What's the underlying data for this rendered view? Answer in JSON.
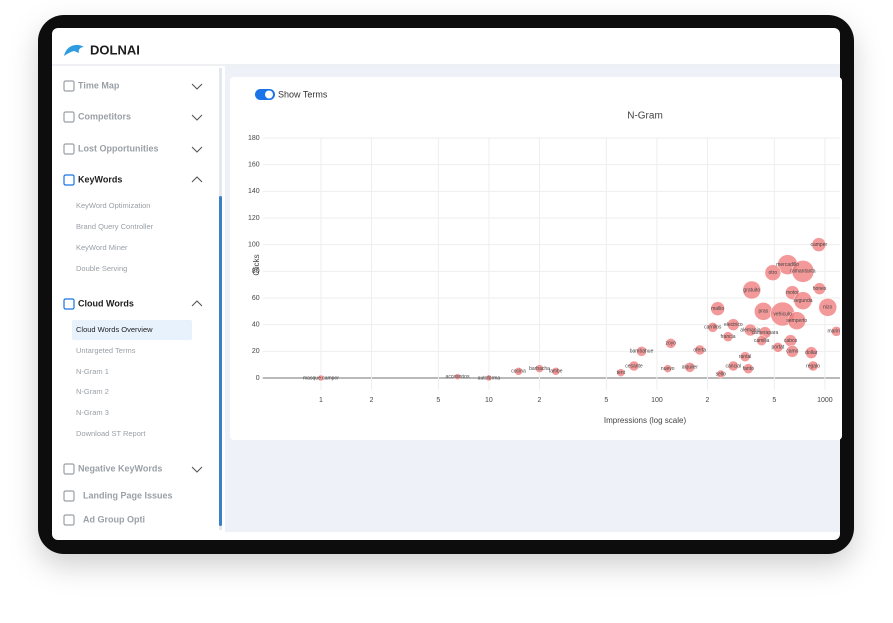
{
  "header": {
    "brand": "DOLNAI"
  },
  "sidebar": {
    "groups": [
      {
        "label": "Time Map",
        "expanded": false
      },
      {
        "label": "Competitors",
        "expanded": false
      },
      {
        "label": "Lost Opportunities",
        "expanded": false
      },
      {
        "label": "KeyWords",
        "expanded": true,
        "items": [
          "KeyWord Optimization",
          "Brand Query Controller",
          "KeyWord Miner",
          "Double Serving"
        ]
      },
      {
        "label": "Cloud Words",
        "expanded": true,
        "selected_item": 0,
        "items": [
          "Cloud Words Overview",
          "Untargeted Terms",
          "N-Gram 1",
          "N-Gram 2",
          "N-Gram 3",
          "Download ST Report"
        ]
      },
      {
        "label": "Negative KeyWords",
        "expanded": false
      },
      {
        "label": "Landing Page Issues"
      },
      {
        "label": "Ad Group Opti"
      }
    ]
  },
  "toggle": {
    "label": "Show Terms",
    "on": true
  },
  "chart_data": {
    "type": "scatter",
    "title": "N-Gram",
    "x_label": "Impressions (log scale)",
    "y_label": "Clicks",
    "x_log": true,
    "grid": true,
    "color": "#f08080",
    "xlim": [
      0.45,
      1230
    ],
    "ylim": [
      -9,
      180
    ],
    "xticks": [
      1,
      {
        "value": 2,
        "label": "2"
      },
      {
        "value": 5,
        "label": "5"
      },
      10,
      {
        "value": 20,
        "label": "2"
      },
      {
        "value": 50,
        "label": "5"
      },
      100,
      {
        "value": 200,
        "label": "2"
      },
      {
        "value": 500,
        "label": "5"
      },
      1000
    ],
    "yticks": [
      0,
      20,
      40,
      60,
      80,
      100,
      120,
      140,
      160,
      180
    ],
    "labels": [
      "camper",
      "mercadillo",
      "ramantanta",
      "otro",
      "gratuito",
      "motor",
      "hones",
      "segunda",
      "nizo",
      "pras",
      "vehiculo",
      "semperto",
      "mallio",
      "carrillos",
      "francia",
      "electrico",
      "alemania",
      "camerapara",
      "camilla",
      "cabos",
      "camo",
      "portat",
      "dollar",
      "regalo",
      "marines",
      "bambahue",
      "zoyo",
      "oferta",
      "rantal",
      "cancial",
      "sello",
      "fanto",
      "alquiler",
      "nuevo",
      "cesante",
      "tent",
      "lambe",
      "barbacha",
      "cocina",
      "autoforma",
      "accesorios",
      "masque camper"
    ],
    "x": [
      920,
      600,
      740,
      490,
      367,
      640,
      930,
      740,
      1040,
      430,
      560,
      680,
      230,
      215,
      265,
      285,
      360,
      440,
      420,
      625,
      640,
      525,
      830,
      850,
      1170,
      81,
      121,
      180,
      335,
      285,
      240,
      350,
      157,
      116,
      73,
      61,
      25,
      20,
      15,
      10,
      6.5,
      1
    ],
    "values": [
      100,
      85,
      80,
      79,
      66,
      64,
      67,
      58,
      53,
      50,
      48,
      43,
      52,
      38,
      31,
      40,
      36,
      34,
      28,
      28,
      20,
      23,
      19,
      9,
      35,
      20,
      26,
      21,
      16,
      9,
      3,
      7,
      8,
      7,
      9,
      4,
      5,
      7,
      5,
      0,
      1,
      0
    ],
    "sizes": [
      7,
      10,
      11,
      8,
      9,
      7,
      6,
      9,
      9,
      9,
      12,
      9,
      7,
      5,
      5,
      6,
      6,
      6,
      5,
      6,
      6,
      5,
      6,
      5,
      5,
      5,
      5,
      5,
      5,
      5,
      4,
      5,
      5,
      4,
      5,
      4,
      4,
      4,
      4,
      3,
      3,
      3
    ]
  }
}
